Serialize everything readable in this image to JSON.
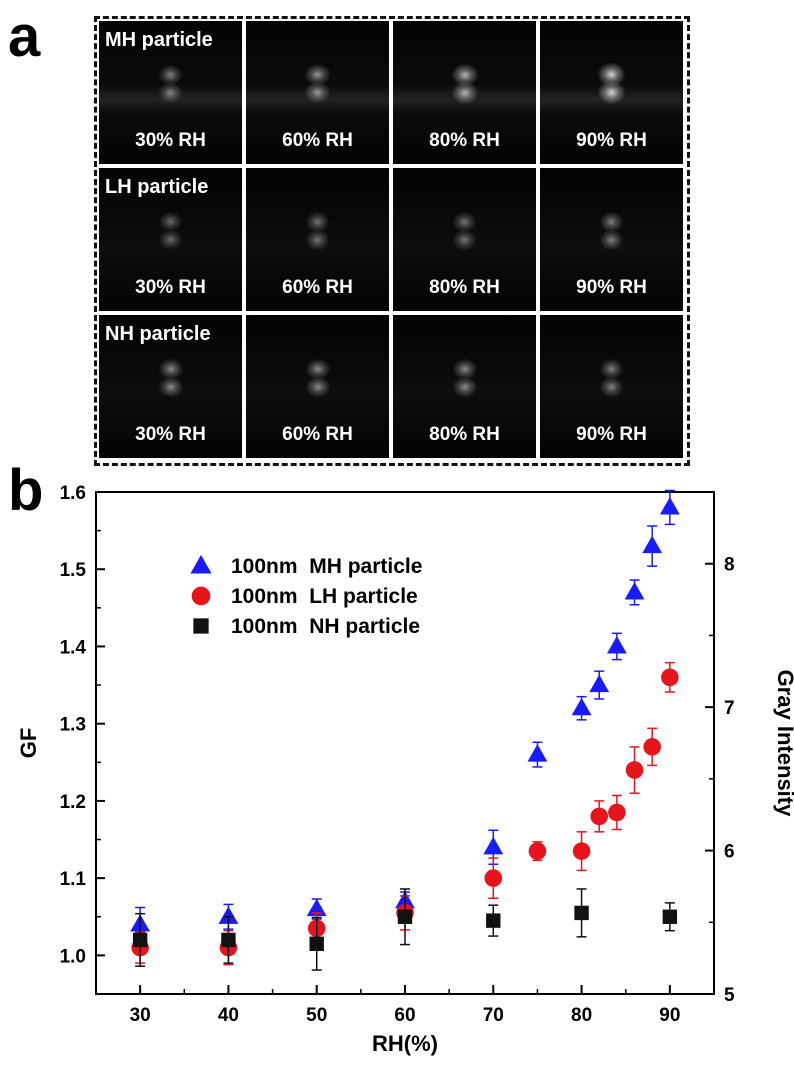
{
  "panels": {
    "a_label": "a",
    "b_label": "b"
  },
  "micrographs": {
    "rows": [
      {
        "label": "MH particle",
        "cells": [
          {
            "caption": "30% RH",
            "brightness": 0.55
          },
          {
            "caption": "60% RH",
            "brightness": 0.65
          },
          {
            "caption": "80% RH",
            "brightness": 0.8
          },
          {
            "caption": "90% RH",
            "brightness": 0.95
          }
        ]
      },
      {
        "label": "LH particle",
        "cells": [
          {
            "caption": "30% RH",
            "brightness": 0.45
          },
          {
            "caption": "60% RH",
            "brightness": 0.5
          },
          {
            "caption": "80% RH",
            "brightness": 0.5
          },
          {
            "caption": "90% RH",
            "brightness": 0.55
          }
        ]
      },
      {
        "label": "NH particle",
        "cells": [
          {
            "caption": "30% RH",
            "brightness": 0.6
          },
          {
            "caption": "60% RH",
            "brightness": 0.6
          },
          {
            "caption": "80% RH",
            "brightness": 0.6
          },
          {
            "caption": "90% RH",
            "brightness": 0.55
          }
        ]
      }
    ]
  },
  "chart_data": {
    "type": "scatter",
    "xlabel": "RH(%)",
    "ylabel": "GF",
    "y2label": "Gray Intensity",
    "xlim": [
      25,
      95
    ],
    "ylim": [
      0.95,
      1.6
    ],
    "y2lim": [
      5,
      8.5
    ],
    "xticks": [
      30,
      40,
      50,
      60,
      70,
      80,
      90
    ],
    "yticks": [
      "1.0",
      "1.1",
      "1.2",
      "1.3",
      "1.4",
      "1.5",
      "1.6"
    ],
    "y2ticks": [
      "5",
      "6",
      "7",
      "8"
    ],
    "legend_position": "upper-left",
    "error_bars": true,
    "series": [
      {
        "name": "100nm  MH particle",
        "marker": "triangle",
        "color": "#1a1aff",
        "x": [
          30,
          40,
          50,
          60,
          70,
          75,
          80,
          82,
          84,
          86,
          88,
          90
        ],
        "y": [
          1.04,
          1.05,
          1.06,
          1.07,
          1.14,
          1.26,
          1.32,
          1.35,
          1.4,
          1.47,
          1.53,
          1.58
        ],
        "err": [
          0.022,
          0.016,
          0.013,
          0.012,
          0.022,
          0.016,
          0.015,
          0.018,
          0.017,
          0.016,
          0.026,
          0.022
        ]
      },
      {
        "name": "100nm  LH particle",
        "marker": "circle",
        "color": "#e8141c",
        "x": [
          30,
          40,
          50,
          60,
          70,
          75,
          80,
          82,
          84,
          86,
          88,
          90
        ],
        "y": [
          1.01,
          1.01,
          1.035,
          1.055,
          1.1,
          1.135,
          1.135,
          1.18,
          1.185,
          1.24,
          1.27,
          1.36
        ],
        "err": [
          0.02,
          0.022,
          0.02,
          0.022,
          0.026,
          0.012,
          0.025,
          0.02,
          0.022,
          0.03,
          0.024,
          0.019
        ]
      },
      {
        "name": "100nm  NH particle",
        "marker": "square",
        "color": "#111111",
        "x": [
          30,
          40,
          50,
          60,
          70,
          80,
          90
        ],
        "y": [
          1.02,
          1.02,
          1.015,
          1.05,
          1.045,
          1.055,
          1.05
        ],
        "err": [
          0.034,
          0.03,
          0.034,
          0.036,
          0.02,
          0.031,
          0.018
        ]
      }
    ]
  }
}
